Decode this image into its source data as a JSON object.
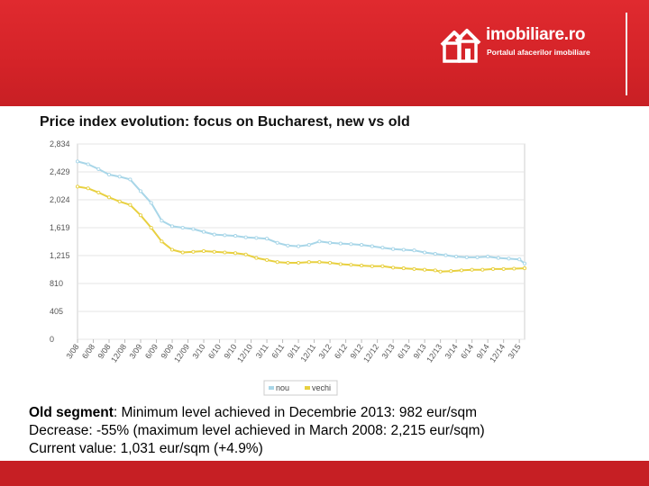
{
  "brand": {
    "name": "imobiliare.ro",
    "tagline": "Portalul afacerilor imobiliare"
  },
  "slide_title": "Price index evolution: focus on Bucharest, new vs old",
  "notes": {
    "line1_bold": "Old segment",
    "line1_rest": ": Minimum level achieved in Decembrie 2013: 982 eur/sqm",
    "line2": "Decrease: -55% (maximum level achieved in March 2008: 2,215 eur/sqm)",
    "line3": "Current value: 1,031 eur/sqm (+4.9%)"
  },
  "colors": {
    "header_red": "#d42328",
    "series_nou": "#a8d6e8",
    "series_vechi": "#e8d040"
  },
  "chart_data": {
    "type": "line",
    "x_start": "2008-03",
    "x_end": "2015-04",
    "x_tick_labels": [
      "3/08",
      "6/08",
      "9/08",
      "12/08",
      "3/09",
      "6/09",
      "9/09",
      "12/09",
      "3/10",
      "6/10",
      "9/10",
      "12/10",
      "3/11",
      "6/11",
      "9/11",
      "12/11",
      "3/12",
      "6/12",
      "9/12",
      "12/12",
      "3/13",
      "6/13",
      "9/13",
      "12/13",
      "3/14",
      "6/14",
      "9/14",
      "12/14",
      "3/15"
    ],
    "y_tick_labels": [
      "0",
      "405",
      "810",
      "1,215",
      "1,619",
      "2,024",
      "2,429",
      "2,834"
    ],
    "ylim": [
      0,
      2834
    ],
    "grid": true,
    "legend_position": "bottom",
    "series": [
      {
        "name": "nou",
        "color": "#a8d6e8",
        "points": [
          [
            "2008-03",
            2580
          ],
          [
            "2008-05",
            2540
          ],
          [
            "2008-07",
            2470
          ],
          [
            "2008-09",
            2390
          ],
          [
            "2008-11",
            2360
          ],
          [
            "2009-01",
            2320
          ],
          [
            "2009-03",
            2150
          ],
          [
            "2009-05",
            1980
          ],
          [
            "2009-07",
            1720
          ],
          [
            "2009-09",
            1640
          ],
          [
            "2009-11",
            1620
          ],
          [
            "2010-01",
            1600
          ],
          [
            "2010-03",
            1560
          ],
          [
            "2010-05",
            1520
          ],
          [
            "2010-07",
            1510
          ],
          [
            "2010-09",
            1500
          ],
          [
            "2010-11",
            1480
          ],
          [
            "2011-01",
            1470
          ],
          [
            "2011-03",
            1460
          ],
          [
            "2011-05",
            1400
          ],
          [
            "2011-07",
            1360
          ],
          [
            "2011-09",
            1350
          ],
          [
            "2011-11",
            1370
          ],
          [
            "2012-01",
            1420
          ],
          [
            "2012-03",
            1400
          ],
          [
            "2012-05",
            1390
          ],
          [
            "2012-07",
            1380
          ],
          [
            "2012-09",
            1370
          ],
          [
            "2012-11",
            1350
          ],
          [
            "2013-01",
            1330
          ],
          [
            "2013-03",
            1310
          ],
          [
            "2013-05",
            1300
          ],
          [
            "2013-07",
            1290
          ],
          [
            "2013-09",
            1260
          ],
          [
            "2013-11",
            1240
          ],
          [
            "2014-01",
            1220
          ],
          [
            "2014-03",
            1200
          ],
          [
            "2014-05",
            1190
          ],
          [
            "2014-07",
            1190
          ],
          [
            "2014-09",
            1200
          ],
          [
            "2014-11",
            1180
          ],
          [
            "2015-01",
            1170
          ],
          [
            "2015-03",
            1160
          ],
          [
            "2015-04",
            1100
          ]
        ]
      },
      {
        "name": "vechi",
        "color": "#e8d040",
        "points": [
          [
            "2008-03",
            2215
          ],
          [
            "2008-05",
            2190
          ],
          [
            "2008-07",
            2130
          ],
          [
            "2008-09",
            2060
          ],
          [
            "2008-11",
            2000
          ],
          [
            "2009-01",
            1950
          ],
          [
            "2009-03",
            1800
          ],
          [
            "2009-05",
            1620
          ],
          [
            "2009-07",
            1420
          ],
          [
            "2009-09",
            1300
          ],
          [
            "2009-11",
            1260
          ],
          [
            "2010-01",
            1270
          ],
          [
            "2010-03",
            1280
          ],
          [
            "2010-05",
            1270
          ],
          [
            "2010-07",
            1260
          ],
          [
            "2010-09",
            1250
          ],
          [
            "2010-11",
            1230
          ],
          [
            "2011-01",
            1180
          ],
          [
            "2011-03",
            1150
          ],
          [
            "2011-05",
            1120
          ],
          [
            "2011-07",
            1110
          ],
          [
            "2011-09",
            1110
          ],
          [
            "2011-11",
            1120
          ],
          [
            "2012-01",
            1120
          ],
          [
            "2012-03",
            1110
          ],
          [
            "2012-05",
            1090
          ],
          [
            "2012-07",
            1080
          ],
          [
            "2012-09",
            1070
          ],
          [
            "2012-11",
            1060
          ],
          [
            "2013-01",
            1060
          ],
          [
            "2013-03",
            1040
          ],
          [
            "2013-05",
            1030
          ],
          [
            "2013-07",
            1020
          ],
          [
            "2013-09",
            1010
          ],
          [
            "2013-11",
            1000
          ],
          [
            "2013-12",
            982
          ],
          [
            "2014-02",
            990
          ],
          [
            "2014-04",
            1000
          ],
          [
            "2014-06",
            1010
          ],
          [
            "2014-08",
            1010
          ],
          [
            "2014-10",
            1020
          ],
          [
            "2014-12",
            1020
          ],
          [
            "2015-02",
            1025
          ],
          [
            "2015-04",
            1031
          ]
        ]
      }
    ]
  }
}
